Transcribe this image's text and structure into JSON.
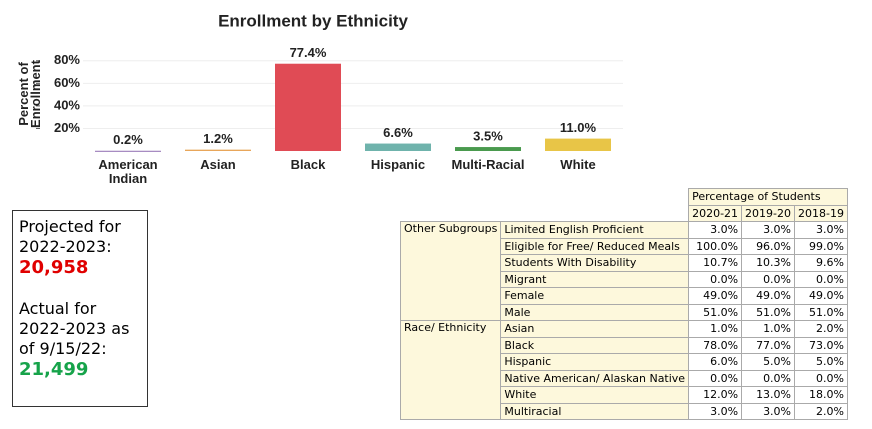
{
  "chart_data": {
    "type": "bar",
    "title": "Enrollment by Ethnicity",
    "y_label": "Percent of Enrollment",
    "categories": [
      "American Indian",
      "Asian",
      "Black",
      "Hispanic",
      "Multi-Racial",
      "White"
    ],
    "values": [
      0.2,
      1.2,
      77.4,
      6.6,
      3.5,
      11.0
    ],
    "value_labels": [
      "0.2%",
      "1.2%",
      "77.4%",
      "6.6%",
      "3.5%",
      "11.0%"
    ],
    "colors": [
      "#8e6bb0",
      "#e8a65a",
      "#e04b55",
      "#6fb3ac",
      "#4a9a4e",
      "#e8c547"
    ],
    "ylim": [
      0,
      94
    ],
    "yticks": [
      {
        "value": 20,
        "label": "20%"
      },
      {
        "value": 40,
        "label": "40%"
      },
      {
        "value": 60,
        "label": "60%"
      },
      {
        "value": 80,
        "label": "80%"
      }
    ],
    "grid": true
  },
  "info_box": {
    "projected_label": "Projected for 2022-2023:",
    "projected_value": "20,958",
    "actual_label": "Actual for 2022-2023 as of 9/15/22:",
    "actual_value": "21,499"
  },
  "table": {
    "header": "Percentage of Students",
    "columns": [
      "2020-21",
      "2019-20",
      "2018-19"
    ],
    "groups": [
      {
        "name": "Other Subgroups",
        "rows": [
          {
            "label": "Limited English Proficient",
            "values": [
              "3.0%",
              "3.0%",
              "3.0%"
            ]
          },
          {
            "label": "Eligible for Free/ Reduced Meals",
            "values": [
              "100.0%",
              "96.0%",
              "99.0%"
            ]
          },
          {
            "label": "Students With Disability",
            "values": [
              "10.7%",
              "10.3%",
              "9.6%"
            ]
          },
          {
            "label": "Migrant",
            "values": [
              "0.0%",
              "0.0%",
              "0.0%"
            ]
          },
          {
            "label": "Female",
            "values": [
              "49.0%",
              "49.0%",
              "49.0%"
            ]
          },
          {
            "label": "Male",
            "values": [
              "51.0%",
              "51.0%",
              "51.0%"
            ]
          }
        ]
      },
      {
        "name": "Race/ Ethnicity",
        "rows": [
          {
            "label": "Asian",
            "values": [
              "1.0%",
              "1.0%",
              "2.0%"
            ]
          },
          {
            "label": "Black",
            "values": [
              "78.0%",
              "77.0%",
              "73.0%"
            ]
          },
          {
            "label": "Hispanic",
            "values": [
              "6.0%",
              "5.0%",
              "5.0%"
            ]
          },
          {
            "label": "Native American/ Alaskan Native",
            "values": [
              "0.0%",
              "0.0%",
              "0.0%"
            ]
          },
          {
            "label": "White",
            "values": [
              "12.0%",
              "13.0%",
              "18.0%"
            ]
          },
          {
            "label": "Multiracial",
            "values": [
              "3.0%",
              "3.0%",
              "2.0%"
            ]
          }
        ]
      }
    ]
  }
}
